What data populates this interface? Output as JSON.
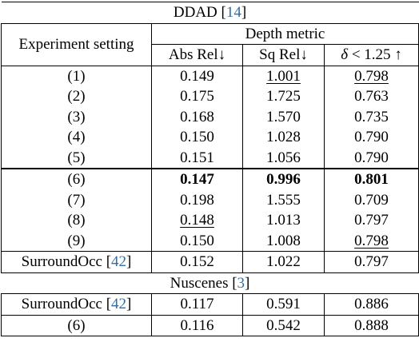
{
  "ddad_section": {
    "title": "DDAD",
    "cite": "14"
  },
  "header": {
    "experiment_setting": "Experiment setting",
    "depth_metric": "Depth metric",
    "abs_rel": "Abs Rel",
    "sq_rel": "Sq Rel",
    "delta_symbol": "δ",
    "delta_rest": " < 1.25",
    "down_arrow": "↓",
    "up_arrow": "↑"
  },
  "ddad_rows_a": [
    {
      "setting": "(1)",
      "abs_rel": "0.149",
      "sq_rel": "1.001",
      "delta": "0.798"
    },
    {
      "setting": "(2)",
      "abs_rel": "0.175",
      "sq_rel": "1.725",
      "delta": "0.763"
    },
    {
      "setting": "(3)",
      "abs_rel": "0.168",
      "sq_rel": "1.570",
      "delta": "0.735"
    },
    {
      "setting": "(4)",
      "abs_rel": "0.150",
      "sq_rel": "1.028",
      "delta": "0.790"
    },
    {
      "setting": "(5)",
      "abs_rel": "0.151",
      "sq_rel": "1.056",
      "delta": "0.790"
    }
  ],
  "ddad_rows_b": [
    {
      "setting": "(6)",
      "abs_rel": "0.147",
      "sq_rel": "0.996",
      "delta": "0.801"
    },
    {
      "setting": "(7)",
      "abs_rel": "0.198",
      "sq_rel": "1.555",
      "delta": "0.709"
    },
    {
      "setting": "(8)",
      "abs_rel": "0.148",
      "sq_rel": "1.013",
      "delta": "0.797"
    },
    {
      "setting": "(9)",
      "abs_rel": "0.150",
      "sq_rel": "1.008",
      "delta": "0.798"
    }
  ],
  "ddad_surroundocc": {
    "setting": "SurroundOcc",
    "cite": "42",
    "abs_rel": "0.152",
    "sq_rel": "1.022",
    "delta": "0.797"
  },
  "nuscenes_section": {
    "title": "Nuscenes",
    "cite": "3"
  },
  "nuscenes_rows": [
    {
      "setting": "SurroundOcc",
      "cite": "42",
      "abs_rel": "0.117",
      "sq_rel": "0.591",
      "delta": "0.886"
    },
    {
      "setting": "(6)",
      "abs_rel": "0.116",
      "sq_rel": "0.542",
      "delta": "0.888"
    }
  ]
}
